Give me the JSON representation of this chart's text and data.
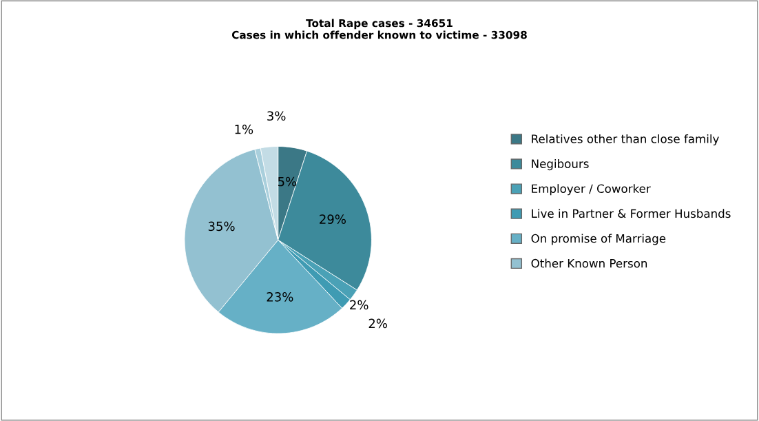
{
  "chart_data": {
    "type": "pie",
    "title": "Total Rape cases - 34651\nCases in which offender known to victime - 33098",
    "categories": [
      "Relatives other than close family",
      "Negibours",
      "Employer / Coworker",
      "Live in Partner & Former Husbands",
      "On promise of Marriage",
      "Other Known Person",
      null,
      null
    ],
    "values": [
      5,
      29,
      2,
      2,
      23,
      35,
      1,
      3
    ],
    "value_labels": [
      "5%",
      "29%",
      "2%",
      "2%",
      "23%",
      "35%",
      "1%",
      "3%"
    ],
    "colors": [
      "#3b7886",
      "#3d8a9b",
      "#4aa1b6",
      "#3f9bb3",
      "#66b0c6",
      "#93c1d1",
      "#a9cfdc",
      "#c3dce5"
    ],
    "legend": "right"
  }
}
